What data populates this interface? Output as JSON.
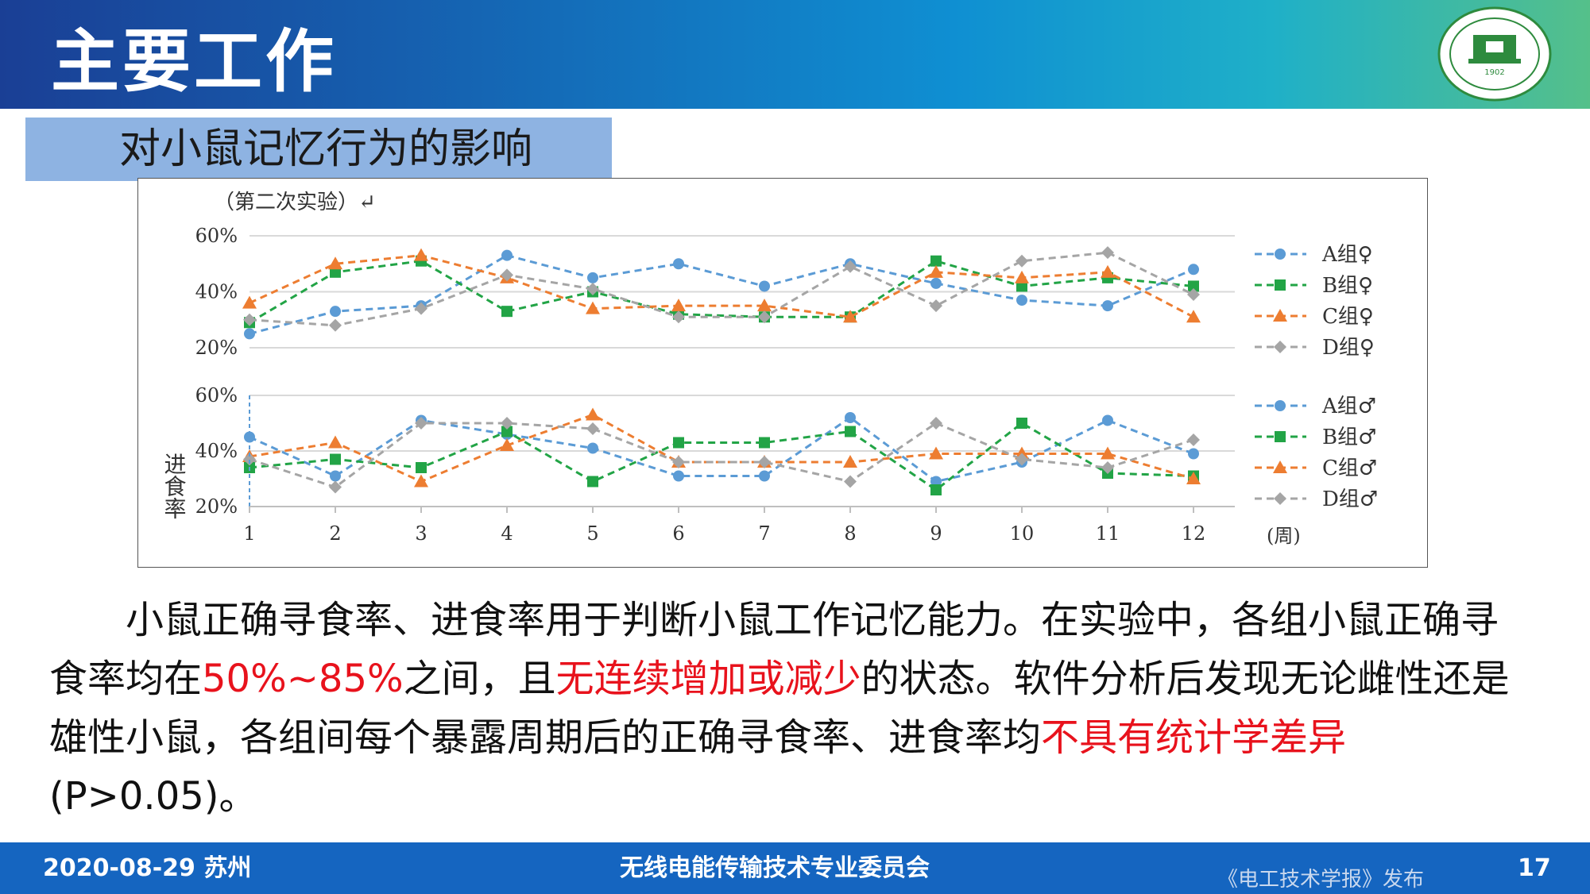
{
  "header": {
    "title": "主要工作",
    "logo_text": "1902"
  },
  "section": {
    "subtitle": "对小鼠记忆行为的影响"
  },
  "chart_data": [
    {
      "type": "line",
      "title": "（第二次实验）↵",
      "xlabel": "(周)",
      "ylabel": "",
      "categories": [
        "1",
        "2",
        "3",
        "4",
        "5",
        "6",
        "7",
        "8",
        "9",
        "10",
        "11",
        "12"
      ],
      "y_ticks": [
        "20%",
        "40%",
        "60%"
      ],
      "ylim": [
        20,
        60
      ],
      "grid": true,
      "legend": "right",
      "series": [
        {
          "name": "A组♀",
          "color": "#5b9bd5",
          "marker": "circle",
          "values": [
            25,
            33,
            35,
            53,
            45,
            50,
            42,
            50,
            43,
            37,
            35,
            48
          ]
        },
        {
          "name": "B组♀",
          "color": "#22a446",
          "marker": "square",
          "values": [
            29,
            47,
            51,
            33,
            40,
            32,
            31,
            31,
            51,
            42,
            45,
            42
          ]
        },
        {
          "name": "C组♀",
          "color": "#ed7d31",
          "marker": "triangle",
          "values": [
            36,
            50,
            53,
            45,
            34,
            35,
            35,
            31,
            47,
            45,
            47,
            31
          ]
        },
        {
          "name": "D组♀",
          "color": "#a5a5a5",
          "marker": "diamond",
          "values": [
            30,
            28,
            34,
            46,
            41,
            31,
            31,
            49,
            35,
            51,
            54,
            39
          ]
        }
      ]
    },
    {
      "type": "line",
      "title": "",
      "xlabel": "(周)",
      "ylabel": "进食率",
      "categories": [
        "1",
        "2",
        "3",
        "4",
        "5",
        "6",
        "7",
        "8",
        "9",
        "10",
        "11",
        "12"
      ],
      "y_ticks": [
        "20%",
        "40%",
        "60%"
      ],
      "ylim": [
        20,
        60
      ],
      "grid": true,
      "legend": "right",
      "series": [
        {
          "name": "A组♂",
          "color": "#5b9bd5",
          "marker": "circle",
          "values": [
            45,
            31,
            51,
            46,
            41,
            31,
            31,
            52,
            29,
            36,
            51,
            39
          ]
        },
        {
          "name": "B组♂",
          "color": "#22a446",
          "marker": "square",
          "values": [
            34,
            37,
            34,
            47,
            29,
            43,
            43,
            47,
            26,
            50,
            32,
            31
          ]
        },
        {
          "name": "C组♂",
          "color": "#ed7d31",
          "marker": "triangle",
          "values": [
            38,
            43,
            29,
            42,
            53,
            36,
            36,
            36,
            39,
            39,
            39,
            30
          ]
        },
        {
          "name": "D组♂",
          "color": "#a5a5a5",
          "marker": "diamond",
          "values": [
            37,
            27,
            50,
            50,
            48,
            36,
            36,
            29,
            50,
            37,
            34,
            44
          ]
        }
      ]
    }
  ],
  "body": {
    "p1_a": "小鼠正确寻食率、进食率用于判断小鼠工作记忆能力。在实验中，各组小鼠正确寻食率均在",
    "p1_red1": "50%~85%",
    "p1_b": "之间，且",
    "p1_red2": "无连续增加或减少",
    "p1_c": "的状态。软件分析后发现无论雌性还是雄性小鼠，各组间每个暴露周期后的正确寻食率、进食率均",
    "p1_red3": "不具有统计学差异",
    "p1_d": "(P>0.05)。"
  },
  "footer": {
    "date": "2020-08-29  苏州",
    "committee": "无线电能传输技术专业委员会",
    "publisher": "《电工技术学报》发布",
    "page": "17"
  }
}
